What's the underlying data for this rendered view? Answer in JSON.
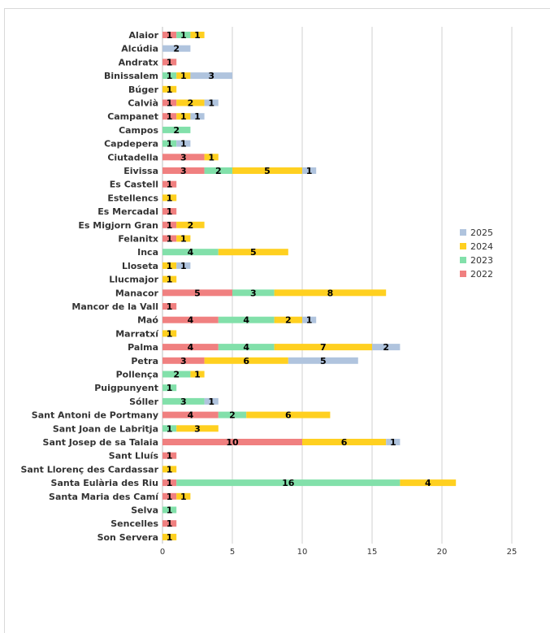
{
  "chart_data": {
    "type": "bar",
    "orientation": "horizontal",
    "stacked": true,
    "categories": [
      "Alaior",
      "Alcúdia",
      "Andratx",
      "Binissalem",
      "Búger",
      "Calvià",
      "Campanet",
      "Campos",
      "Capdepera",
      "Ciutadella",
      "Eivissa",
      "Es Castell",
      "Estellencs",
      "Es Mercadal",
      "Es Migjorn Gran",
      "Felanitx",
      "Inca",
      "Lloseta",
      "Llucmajor",
      "Manacor",
      "Mancor de la Vall",
      "Maó",
      "Marratxí",
      "Palma",
      "Petra",
      "Pollença",
      "Puigpunyent",
      "Sóller",
      "Sant Antoni de Portmany",
      "Sant Joan de Labritja",
      "Sant Josep de sa Talaia",
      "Sant Lluís",
      "Sant Llorenç des Cardassar",
      "Santa Eulària des Riu",
      "Santa Maria des Camí",
      "Selva",
      "Sencelles",
      "Son Servera"
    ],
    "series": [
      {
        "name": "2022",
        "color": "#f08080",
        "values": [
          1,
          0,
          1,
          0,
          0,
          1,
          1,
          0,
          0,
          3,
          3,
          1,
          0,
          1,
          1,
          1,
          0,
          0,
          0,
          5,
          1,
          4,
          0,
          4,
          3,
          0,
          0,
          0,
          4,
          0,
          10,
          1,
          0,
          1,
          1,
          0,
          1,
          0
        ]
      },
      {
        "name": "2023",
        "color": "#82e0aa",
        "values": [
          1,
          0,
          0,
          1,
          0,
          0,
          0,
          2,
          1,
          0,
          2,
          0,
          0,
          0,
          0,
          0,
          4,
          0,
          0,
          3,
          0,
          4,
          0,
          4,
          0,
          2,
          1,
          3,
          2,
          1,
          0,
          0,
          0,
          16,
          0,
          1,
          0,
          0
        ]
      },
      {
        "name": "2024",
        "color": "#ffd020",
        "values": [
          1,
          0,
          0,
          1,
          1,
          2,
          1,
          0,
          0,
          1,
          5,
          0,
          1,
          0,
          2,
          1,
          5,
          1,
          1,
          8,
          0,
          2,
          1,
          7,
          6,
          1,
          0,
          0,
          6,
          3,
          6,
          0,
          1,
          4,
          1,
          0,
          0,
          1
        ]
      },
      {
        "name": "2025",
        "color": "#b0c4de",
        "values": [
          0,
          2,
          0,
          3,
          0,
          1,
          1,
          0,
          1,
          0,
          1,
          0,
          0,
          0,
          0,
          0,
          0,
          1,
          0,
          0,
          0,
          1,
          0,
          2,
          5,
          0,
          0,
          1,
          0,
          0,
          1,
          0,
          0,
          0,
          0,
          0,
          0,
          0
        ]
      }
    ],
    "xlim": [
      0,
      25
    ],
    "xticks": [
      "0",
      "5",
      "10",
      "15",
      "20",
      "25"
    ],
    "grid": true,
    "legend_position": "right",
    "legend_order": [
      "2025",
      "2024",
      "2023",
      "2022"
    ]
  }
}
